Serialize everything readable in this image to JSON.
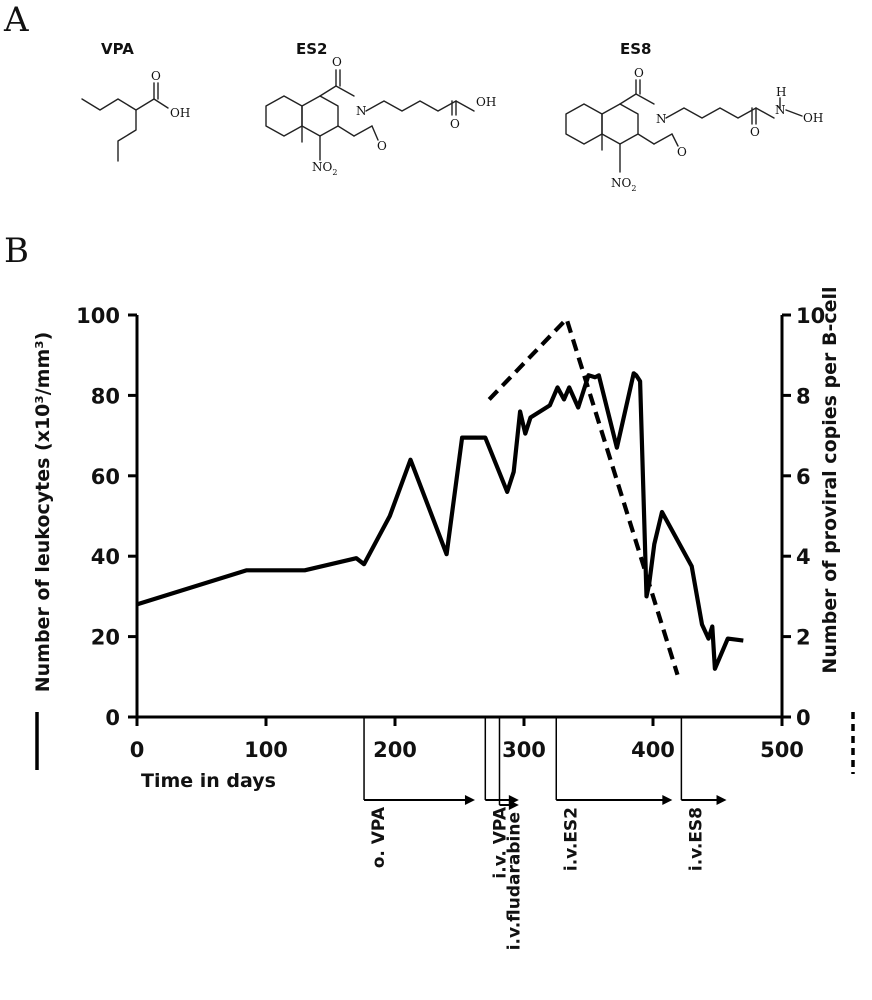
{
  "panel_a": {
    "letter": "A",
    "molecules": [
      {
        "name": "VPA",
        "atoms": {
          "oxygen": "O",
          "hydroxyl": "OH"
        }
      },
      {
        "name": "ES2",
        "atoms": {
          "oxygen_top": "O",
          "nitrogen": "N",
          "oxygen_bottom": "O",
          "acid_oxygen": "O",
          "hydroxyl": "OH",
          "nitro": "NO",
          "nitro_sub": "2"
        }
      },
      {
        "name": "ES8",
        "atoms": {
          "oxygen_top": "O",
          "nitrogen": "N",
          "oxygen_bottom": "O",
          "amide_oxygen": "O",
          "hydrogen": "H",
          "hydroxamic_n": "N",
          "hydroxamic_oh": "OH",
          "nitro": "NO",
          "nitro_sub": "2"
        }
      }
    ]
  },
  "panel_b": {
    "letter": "B"
  },
  "chart_data": {
    "type": "line",
    "title": "",
    "xlabel": "Time in days",
    "ylabel_left": "Number of leukocytes (x10³/mm³)",
    "ylabel_right": "Number of proviral copies per B-cell",
    "legend_left_marker": "solid",
    "legend_right_marker": "dashed",
    "xlim": [
      0,
      500
    ],
    "ylim_left": [
      0,
      100
    ],
    "ylim_right": [
      0,
      10
    ],
    "x_ticks": [
      "0",
      "100",
      "200",
      "300",
      "400",
      "500"
    ],
    "y_left_ticks": [
      "0",
      "20",
      "40",
      "60",
      "80",
      "100"
    ],
    "y_right_ticks": [
      "0",
      "2",
      "4",
      "6",
      "8",
      "10"
    ],
    "grid": false,
    "series": [
      {
        "axis": "left",
        "style": "solid",
        "points": [
          [
            0,
            28
          ],
          [
            85,
            36.5
          ],
          [
            130,
            36.5
          ],
          [
            170,
            39.5
          ],
          [
            176,
            38
          ],
          [
            196,
            50
          ],
          [
            212,
            64
          ],
          [
            240,
            40.5
          ],
          [
            252,
            69.5
          ],
          [
            270,
            69.5
          ],
          [
            287,
            56
          ],
          [
            292,
            61
          ],
          [
            297,
            76
          ],
          [
            301,
            70.5
          ],
          [
            305,
            74.5
          ],
          [
            320,
            77.5
          ],
          [
            326,
            82
          ],
          [
            331,
            79
          ],
          [
            335,
            82
          ],
          [
            342,
            77
          ],
          [
            350,
            85
          ],
          [
            355,
            84.5
          ],
          [
            358,
            85
          ],
          [
            372,
            67
          ],
          [
            385,
            85.5
          ],
          [
            387,
            85
          ],
          [
            390,
            83.5
          ],
          [
            395,
            30
          ],
          [
            397,
            33
          ],
          [
            401,
            43
          ],
          [
            407,
            51
          ],
          [
            430,
            37.5
          ],
          [
            438,
            23
          ],
          [
            443,
            19.5
          ],
          [
            446,
            22.5
          ],
          [
            448,
            12
          ],
          [
            458,
            19.5
          ],
          [
            470,
            19
          ]
        ]
      },
      {
        "axis": "right",
        "style": "dashed",
        "points": [
          [
            273,
            7.9
          ],
          [
            333,
            9.9
          ],
          [
            419,
            1.05
          ]
        ]
      }
    ],
    "treatments": [
      {
        "label": "o. VPA",
        "start": 176,
        "end": 262
      },
      {
        "label": "i.v. VPA",
        "start": 270,
        "end": 296
      },
      {
        "label": "i.v.fludarabine",
        "start": 281,
        "end": 296
      },
      {
        "label": "i.v.ES2",
        "start": 325,
        "end": 415
      },
      {
        "label": "i.v.ES8",
        "start": 422,
        "end": 457
      }
    ]
  }
}
